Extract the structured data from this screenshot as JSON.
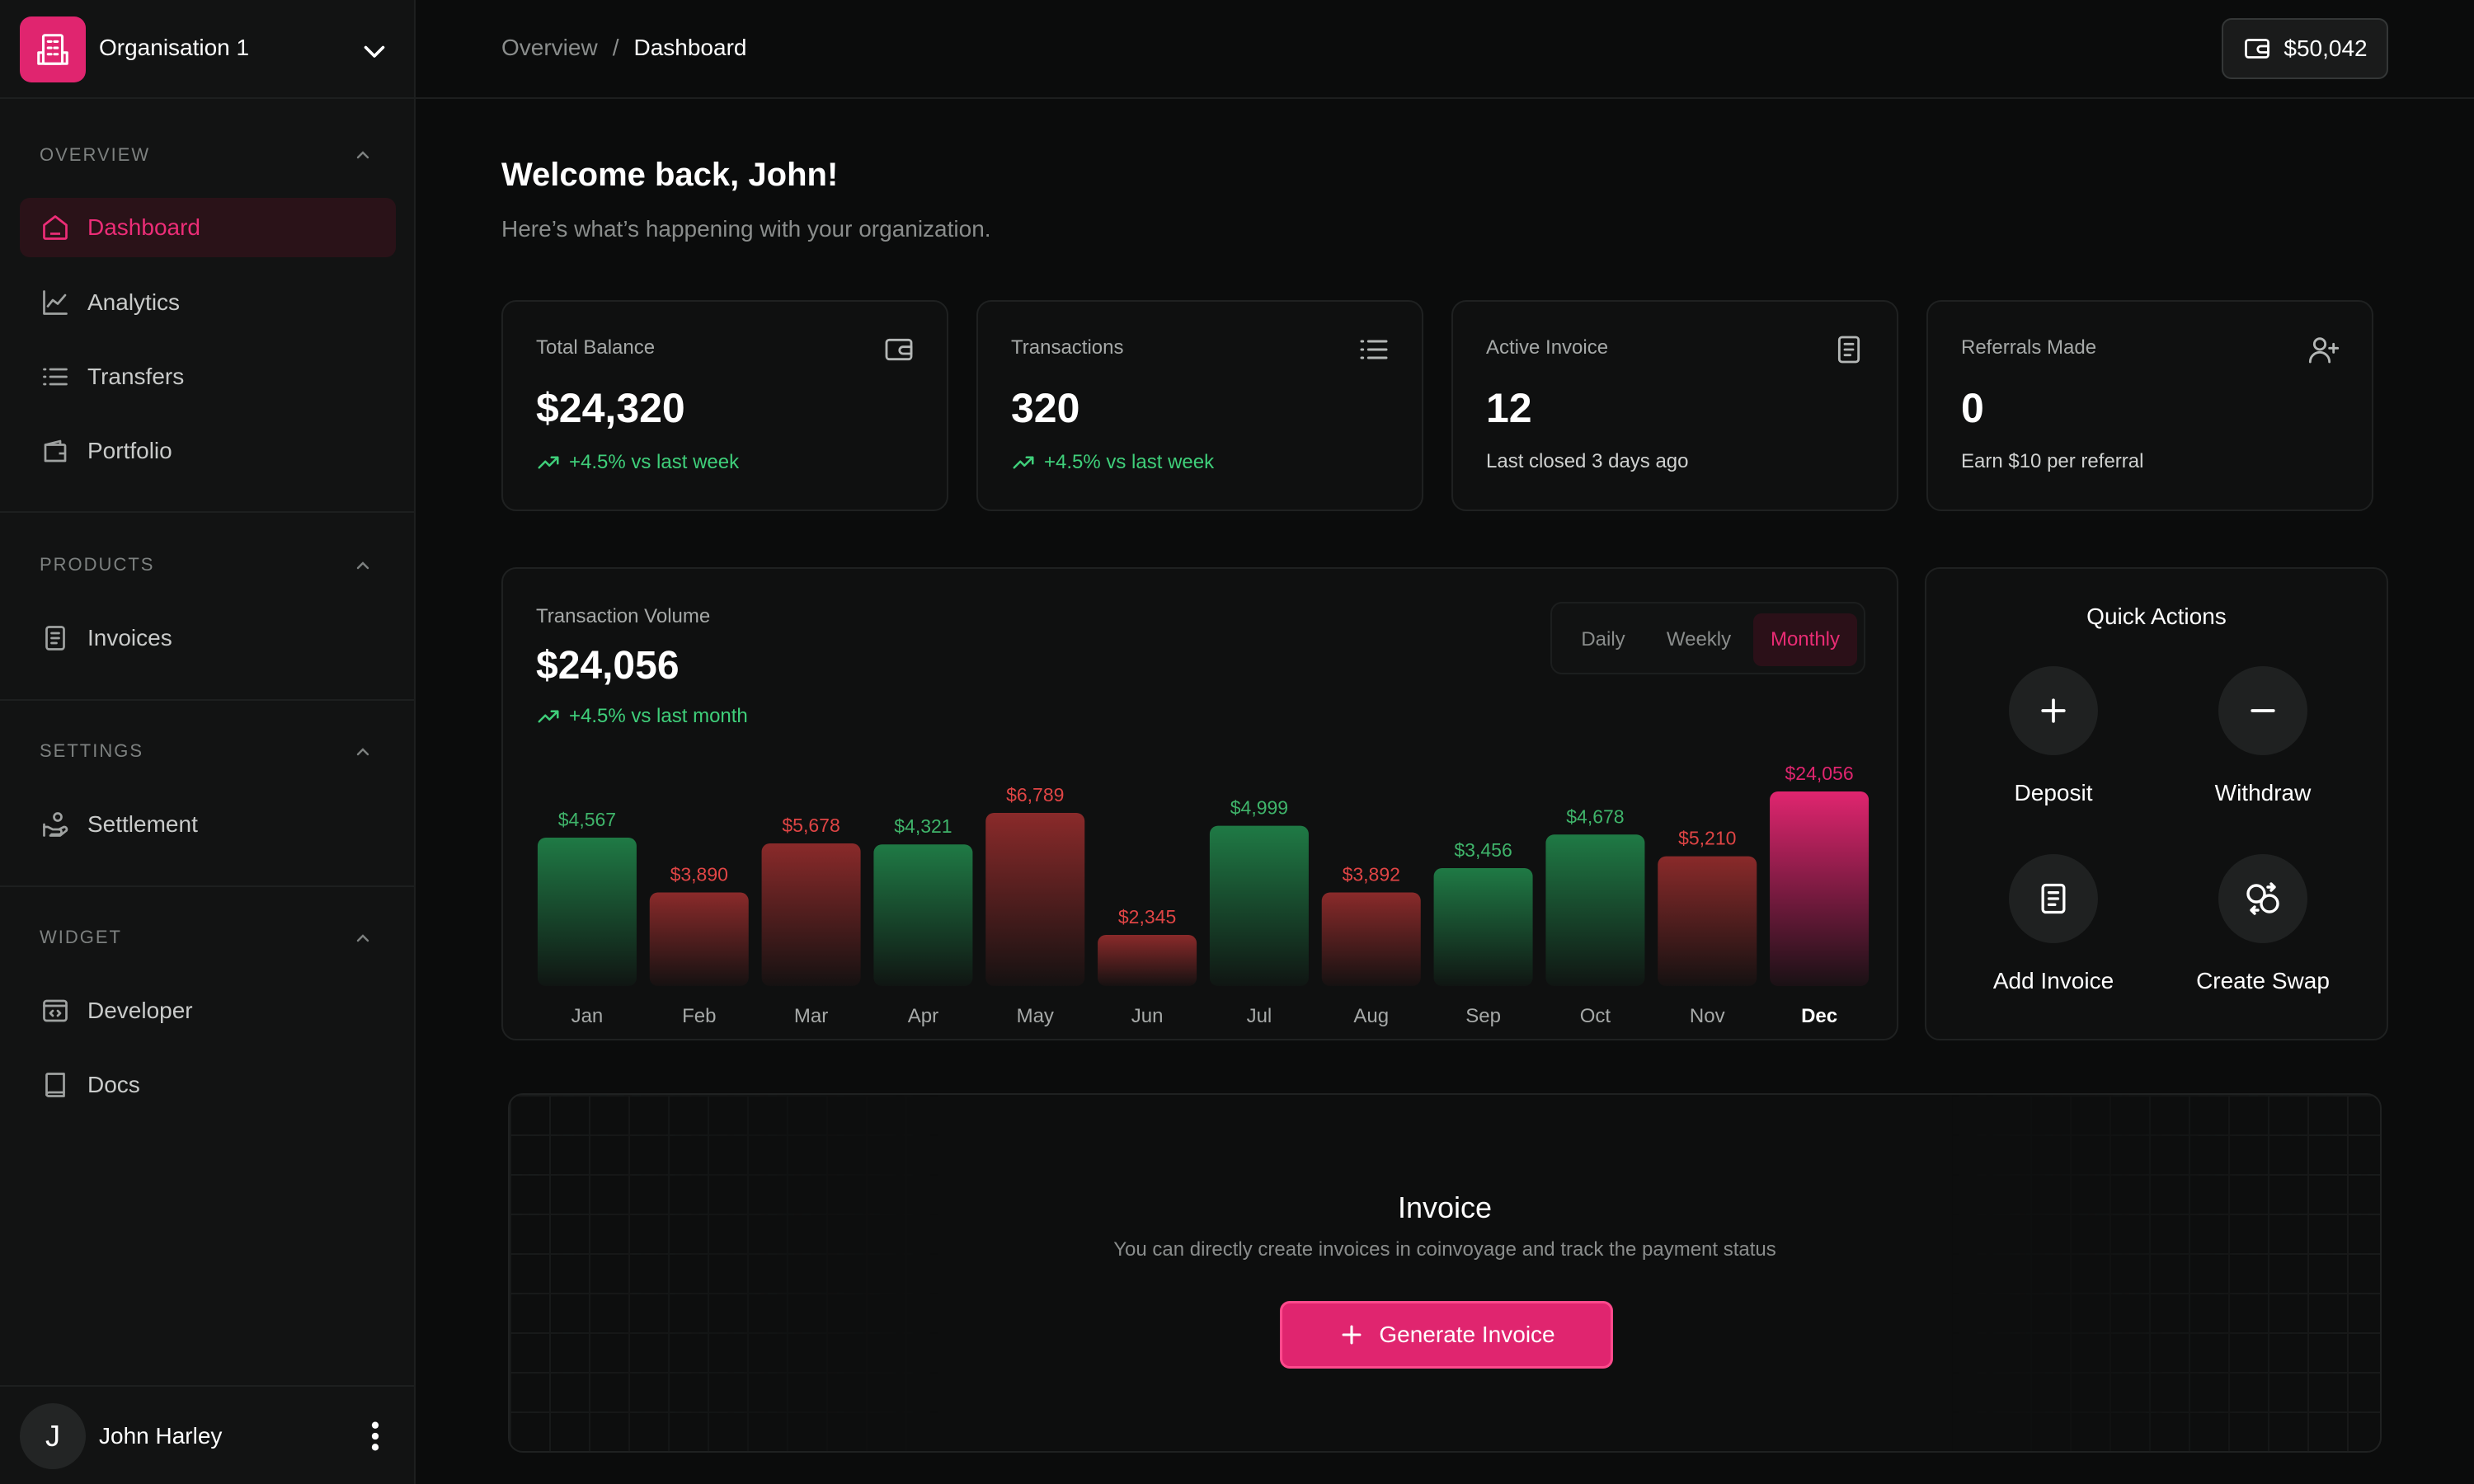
{
  "org": {
    "name": "Organisation 1"
  },
  "sidebar": {
    "sections": [
      {
        "title": "Overview",
        "items": [
          {
            "label": "Dashboard",
            "icon": "home-icon",
            "active": true
          },
          {
            "label": "Analytics",
            "icon": "analytics-icon"
          },
          {
            "label": "Transfers",
            "icon": "list-icon"
          },
          {
            "label": "Portfolio",
            "icon": "wallet-icon"
          }
        ]
      },
      {
        "title": "Products",
        "items": [
          {
            "label": "Invoices",
            "icon": "invoice-icon"
          }
        ]
      },
      {
        "title": "Settings",
        "items": [
          {
            "label": "Settlement",
            "icon": "settlement-icon"
          }
        ]
      },
      {
        "title": "Widget",
        "items": [
          {
            "label": "Developer",
            "icon": "code-icon"
          },
          {
            "label": "Docs",
            "icon": "book-icon"
          }
        ]
      }
    ]
  },
  "user": {
    "initial": "J",
    "name": "John Harley"
  },
  "header": {
    "breadcrumb": {
      "parent": "Overview",
      "separator": "/",
      "current": "Dashboard"
    },
    "balance": "$50,042"
  },
  "welcome": {
    "title": "Welcome back, John!",
    "subtitle": "Here’s what’s happening with your organization."
  },
  "stats": [
    {
      "label": "Total Balance",
      "value": "$24,320",
      "note": "+4.5% vs last week",
      "icon": "wallet-icon",
      "trend": "up"
    },
    {
      "label": "Transactions",
      "value": "320",
      "note": "+4.5% vs last week",
      "icon": "list-icon",
      "trend": "up"
    },
    {
      "label": "Active Invoice",
      "value": "12",
      "note": "Last closed 3 days ago",
      "icon": "invoice-icon",
      "trend": "none"
    },
    {
      "label": "Referrals Made",
      "value": "0",
      "note": "Earn $10 per referral",
      "icon": "add-user-icon",
      "trend": "none"
    }
  ],
  "volume": {
    "label": "Transaction Volume",
    "total": "$24,056",
    "change": "+4.5% vs last month",
    "tabs": [
      "Daily",
      "Weekly",
      "Monthly"
    ],
    "active_tab": "Monthly"
  },
  "chart_data": {
    "type": "bar",
    "categories": [
      "Jan",
      "Feb",
      "Mar",
      "Apr",
      "May",
      "Jun",
      "Jul",
      "Aug",
      "Sep",
      "Oct",
      "Nov",
      "Dec"
    ],
    "values": [
      4567,
      3890,
      5678,
      4321,
      6789,
      2345,
      4999,
      3892,
      3456,
      4678,
      5210,
      24056
    ],
    "value_labels": [
      "$4,567",
      "$3,890",
      "$5,678",
      "$4,321",
      "$6,789",
      "$2,345",
      "$4,999",
      "$3,892",
      "$3,456",
      "$4,678",
      "$5,210",
      "$24,056"
    ],
    "trend": [
      "up",
      "down",
      "down",
      "up",
      "down",
      "down",
      "up",
      "down",
      "up",
      "up",
      "down",
      "highlight"
    ],
    "colors": {
      "up": "#1f7a45",
      "down": "#8a2a2a",
      "highlight": "#e0256f",
      "up_text": "#3fb46a",
      "down_text": "#e04545"
    },
    "grid": false
  },
  "quick_actions": {
    "title": "Quick Actions",
    "items": [
      {
        "label": "Deposit",
        "icon": "plus-icon"
      },
      {
        "label": "Withdraw",
        "icon": "minus-icon"
      },
      {
        "label": "Add Invoice",
        "icon": "invoice-icon"
      },
      {
        "label": "Create Swap",
        "icon": "swap-icon"
      }
    ]
  },
  "invoice_card": {
    "title": "Invoice",
    "subtitle": "You can directly create invoices in coinvoyage and track the payment status",
    "button": "Generate Invoice"
  },
  "colors": {
    "accent": "#e0256f",
    "positive": "#3fcf7a",
    "negative": "#e04545",
    "background": "#0b0c0c"
  }
}
